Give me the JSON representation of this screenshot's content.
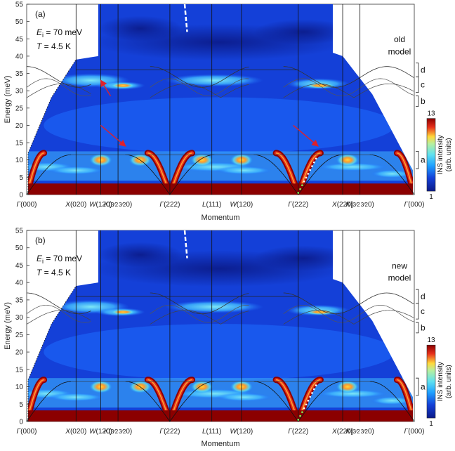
{
  "chart_data": [
    {
      "type": "heatmap",
      "panel": "(a)",
      "ylabel": "Energy (meV)",
      "xlabel": "Momentum",
      "ylim": [
        0,
        55
      ],
      "yticks": [
        0,
        5,
        10,
        15,
        20,
        25,
        30,
        35,
        40,
        45,
        50,
        55
      ],
      "xticks": [
        {
          "label": "Γ(000)",
          "pos": 0
        },
        {
          "label": "X(020)",
          "pos": 1
        },
        {
          "label": "W(120)",
          "pos": 1.5
        },
        {
          "label": "K(3/2 3/2 0)",
          "pos": 1.85
        },
        {
          "label": "Γ(222)",
          "pos": 2.9
        },
        {
          "label": "L(111)",
          "pos": 3.75
        },
        {
          "label": "W(120)",
          "pos": 4.35
        },
        {
          "label": "Γ(222)",
          "pos": 5.5
        },
        {
          "label": "X(220)",
          "pos": 6.4
        },
        {
          "label": "K(3/2 3/2 0)",
          "pos": 6.75
        },
        {
          "label": "Γ(000)",
          "pos": 7.85
        }
      ],
      "text_annotations": [
        "E_i = 70 meV",
        "T = 4.5 K",
        "old model"
      ],
      "band_labels": [
        "d",
        "c",
        "b",
        "a"
      ],
      "colorbar": {
        "min": 1,
        "max": 13,
        "label": "INS intensity (arb. units)"
      }
    },
    {
      "type": "heatmap",
      "panel": "(b)",
      "ylabel": "Energy (meV)",
      "xlabel": "Momentum",
      "ylim": [
        0,
        55
      ],
      "yticks": [
        0,
        5,
        10,
        15,
        20,
        25,
        30,
        35,
        40,
        45,
        50,
        55
      ],
      "xticks": [
        {
          "label": "Γ(000)",
          "pos": 0
        },
        {
          "label": "X(020)",
          "pos": 1
        },
        {
          "label": "W(120)",
          "pos": 1.5
        },
        {
          "label": "K(3/2 3/2 0)",
          "pos": 1.85
        },
        {
          "label": "Γ(222)",
          "pos": 2.9
        },
        {
          "label": "L(111)",
          "pos": 3.75
        },
        {
          "label": "W(120)",
          "pos": 4.35
        },
        {
          "label": "Γ(222)",
          "pos": 5.5
        },
        {
          "label": "X(220)",
          "pos": 6.4
        },
        {
          "label": "K(3/2 3/2 0)",
          "pos": 6.75
        },
        {
          "label": "Γ(000)",
          "pos": 7.85
        }
      ],
      "text_annotations": [
        "E_i = 70 meV",
        "T = 4.5 K",
        "new model"
      ],
      "band_labels": [
        "d",
        "c",
        "b",
        "a"
      ],
      "colorbar": {
        "min": 1,
        "max": 13,
        "label": "INS intensity (arb. units)"
      }
    }
  ],
  "panels": [
    {
      "tag": "(a)",
      "ei": "E",
      "ei_sub": "i",
      "ei_val": " = 70 meV",
      "t": "T",
      "t_val": " = 4.5 K",
      "model_l1": "old",
      "model_l2": "model",
      "xlabel": "Momentum",
      "ylabel": "Energy (meV)"
    },
    {
      "tag": "(b)",
      "ei": "E",
      "ei_sub": "i",
      "ei_val": " = 70 meV",
      "t": "T",
      "t_val": " = 4.5 K",
      "model_l1": "new",
      "model_l2": "model",
      "xlabel": "Momentum",
      "ylabel": "Energy (meV)"
    }
  ],
  "colorbar_labels": {
    "max": "13",
    "min": "1",
    "title1": "INS intensity",
    "title2": "(arb. units)"
  },
  "colors": {
    "dark_red": "#8b0000",
    "red": "#e8301b",
    "yellow": "#ffd83a",
    "cyan": "#5ee0f0",
    "light_blue": "#1ea0ff",
    "blue": "#1440d8",
    "navy": "#0b1a88"
  }
}
